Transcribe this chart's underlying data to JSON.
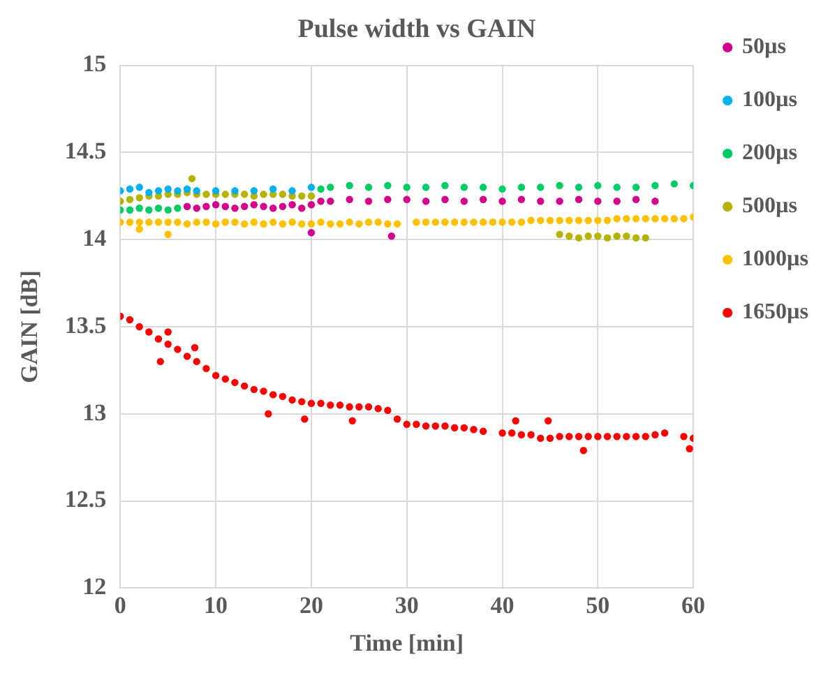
{
  "chart_data": {
    "type": "scatter",
    "title": "Pulse width vs GAIN",
    "xlabel": "Time [min]",
    "ylabel": "GAIN [dB]",
    "xlim": [
      0,
      60
    ],
    "xticks": [
      0,
      10,
      20,
      30,
      40,
      50,
      60
    ],
    "ylim": [
      12,
      15
    ],
    "yticks": [
      12,
      12.5,
      13,
      13.5,
      14,
      14.5,
      15
    ],
    "grid": true,
    "legend": "right",
    "marker": "circle",
    "series": [
      {
        "name": "50µs",
        "color": "#d4008c",
        "x": [
          7,
          8,
          9,
          10,
          11,
          12,
          13,
          14,
          15,
          16,
          17,
          18,
          19,
          20,
          21,
          22,
          24,
          26,
          28,
          30,
          32,
          34,
          36,
          38,
          40,
          42,
          44,
          46,
          48,
          50,
          52,
          54,
          56,
          20,
          28.4
        ],
        "values": [
          14.19,
          14.18,
          14.19,
          14.2,
          14.19,
          14.18,
          14.19,
          14.2,
          14.19,
          14.18,
          14.19,
          14.2,
          14.18,
          14.2,
          14.22,
          14.22,
          14.23,
          14.22,
          14.23,
          14.23,
          14.22,
          14.23,
          14.22,
          14.23,
          14.22,
          14.23,
          14.22,
          14.22,
          14.23,
          14.22,
          14.22,
          14.23,
          14.22,
          14.04,
          14.02
        ]
      },
      {
        "name": "100µs",
        "color": "#00b0f0",
        "x": [
          0,
          1,
          2,
          3,
          4,
          5,
          6,
          7,
          8,
          10,
          12,
          14,
          16,
          18,
          20
        ],
        "values": [
          14.28,
          14.29,
          14.3,
          14.27,
          14.28,
          14.29,
          14.28,
          14.29,
          14.28,
          14.28,
          14.28,
          14.28,
          14.29,
          14.28,
          14.3
        ]
      },
      {
        "name": "200µs",
        "color": "#00cc66",
        "x": [
          0,
          1,
          2,
          3,
          4,
          5,
          6,
          21,
          22,
          24,
          26,
          28,
          30,
          32,
          34,
          36,
          38,
          40,
          42,
          44,
          46,
          48,
          50,
          52,
          54,
          56,
          58,
          60
        ],
        "values": [
          14.17,
          14.17,
          14.18,
          14.17,
          14.18,
          14.17,
          14.18,
          14.29,
          14.3,
          14.31,
          14.3,
          14.31,
          14.3,
          14.3,
          14.31,
          14.3,
          14.3,
          14.29,
          14.3,
          14.3,
          14.31,
          14.3,
          14.31,
          14.3,
          14.3,
          14.31,
          14.32,
          14.31
        ]
      },
      {
        "name": "500µs",
        "color": "#b4b400",
        "x": [
          0,
          1,
          2,
          3,
          4,
          5,
          6,
          7,
          8,
          9,
          10,
          11,
          12,
          13,
          14,
          15,
          16,
          17,
          18,
          19,
          20,
          7.5,
          46,
          47,
          48,
          49,
          50,
          51,
          52,
          53,
          54,
          55
        ],
        "values": [
          14.22,
          14.23,
          14.24,
          14.25,
          14.25,
          14.26,
          14.26,
          14.27,
          14.26,
          14.26,
          14.26,
          14.26,
          14.26,
          14.26,
          14.25,
          14.26,
          14.26,
          14.26,
          14.25,
          14.25,
          14.25,
          14.35,
          14.03,
          14.02,
          14.01,
          14.02,
          14.02,
          14.01,
          14.02,
          14.02,
          14.01,
          14.01
        ]
      },
      {
        "name": "1000µs",
        "color": "#ffc000",
        "x": [
          0,
          1,
          2,
          3,
          4,
          5,
          6,
          7,
          8,
          9,
          10,
          11,
          12,
          13,
          14,
          15,
          16,
          17,
          18,
          19,
          20,
          21,
          22,
          23,
          24,
          25,
          26,
          27,
          28,
          29,
          31,
          32,
          33,
          34,
          35,
          36,
          37,
          38,
          39,
          40,
          41,
          42,
          43,
          44,
          45,
          46,
          47,
          48,
          49,
          50,
          51,
          52,
          53,
          54,
          55,
          56,
          57,
          58,
          59,
          60,
          2,
          5
        ],
        "values": [
          14.1,
          14.1,
          14.1,
          14.1,
          14.1,
          14.1,
          14.1,
          14.09,
          14.1,
          14.1,
          14.09,
          14.1,
          14.1,
          14.09,
          14.1,
          14.09,
          14.1,
          14.09,
          14.1,
          14.09,
          14.09,
          14.1,
          14.09,
          14.09,
          14.1,
          14.09,
          14.1,
          14.1,
          14.09,
          14.09,
          14.1,
          14.1,
          14.1,
          14.1,
          14.1,
          14.1,
          14.1,
          14.1,
          14.1,
          14.1,
          14.1,
          14.1,
          14.11,
          14.11,
          14.11,
          14.11,
          14.11,
          14.11,
          14.11,
          14.11,
          14.11,
          14.12,
          14.12,
          14.12,
          14.12,
          14.12,
          14.12,
          14.12,
          14.12,
          14.13,
          14.06,
          14.03
        ]
      },
      {
        "name": "1650µs",
        "color": "#ff0000",
        "x": [
          0,
          1,
          2,
          3,
          4,
          5,
          6,
          7,
          8,
          9,
          10,
          11,
          12,
          13,
          14,
          15,
          16,
          17,
          18,
          19,
          20,
          21,
          22,
          23,
          24,
          25,
          26,
          27,
          28,
          29,
          30,
          31,
          32,
          33,
          34,
          35,
          36,
          37,
          38,
          40,
          41,
          42,
          43,
          44,
          45,
          46,
          47,
          48,
          49,
          50,
          51,
          52,
          53,
          54,
          55,
          56,
          57,
          59,
          60,
          4.2,
          5,
          7.8,
          15.5,
          19.3,
          24.3,
          41.4,
          44.8,
          48.5,
          59.6
        ],
        "values": [
          13.56,
          13.54,
          13.5,
          13.47,
          13.43,
          13.4,
          13.37,
          13.33,
          13.3,
          13.26,
          13.22,
          13.2,
          13.18,
          13.16,
          13.14,
          13.13,
          13.11,
          13.1,
          13.08,
          13.07,
          13.06,
          13.06,
          13.05,
          13.05,
          13.04,
          13.04,
          13.04,
          13.03,
          13.02,
          12.97,
          12.94,
          12.94,
          12.93,
          12.93,
          12.93,
          12.92,
          12.92,
          12.91,
          12.9,
          12.89,
          12.89,
          12.88,
          12.88,
          12.86,
          12.86,
          12.87,
          12.87,
          12.87,
          12.87,
          12.87,
          12.87,
          12.87,
          12.87,
          12.87,
          12.87,
          12.88,
          12.89,
          12.87,
          12.86,
          13.3,
          13.47,
          13.38,
          13.0,
          12.97,
          12.96,
          12.96,
          12.96,
          12.79,
          12.8
        ]
      }
    ]
  }
}
